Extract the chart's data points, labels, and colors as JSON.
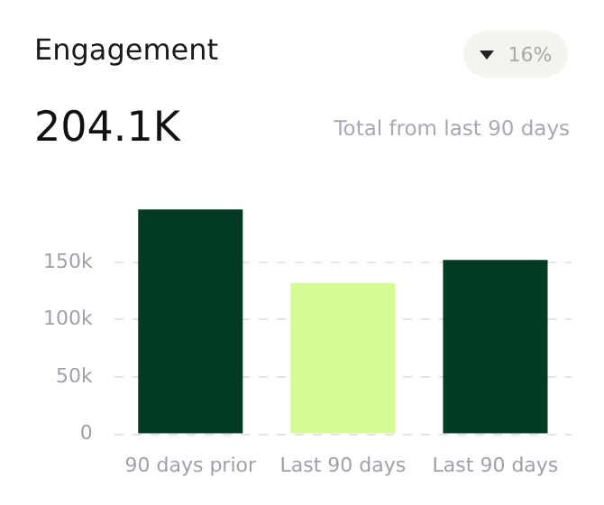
{
  "chart_data": {
    "type": "bar",
    "title": "Engagement",
    "annotations": [
      "204.1K",
      "Total from last 90 days",
      "16%"
    ],
    "categories": [
      "90 days prior",
      "Last 90 days",
      "Last 90 days"
    ],
    "values": [
      196000,
      132000,
      152000
    ],
    "colors": [
      "#033a22",
      "#d4fc94",
      "#033a22"
    ],
    "ylim": [
      0,
      200000
    ],
    "yticks": [
      {
        "value": 0,
        "label": "0"
      },
      {
        "value": 50000,
        "label": "50k"
      },
      {
        "value": 100000,
        "label": "100k"
      },
      {
        "value": 150000,
        "label": "150k"
      }
    ],
    "grid": "y"
  }
}
